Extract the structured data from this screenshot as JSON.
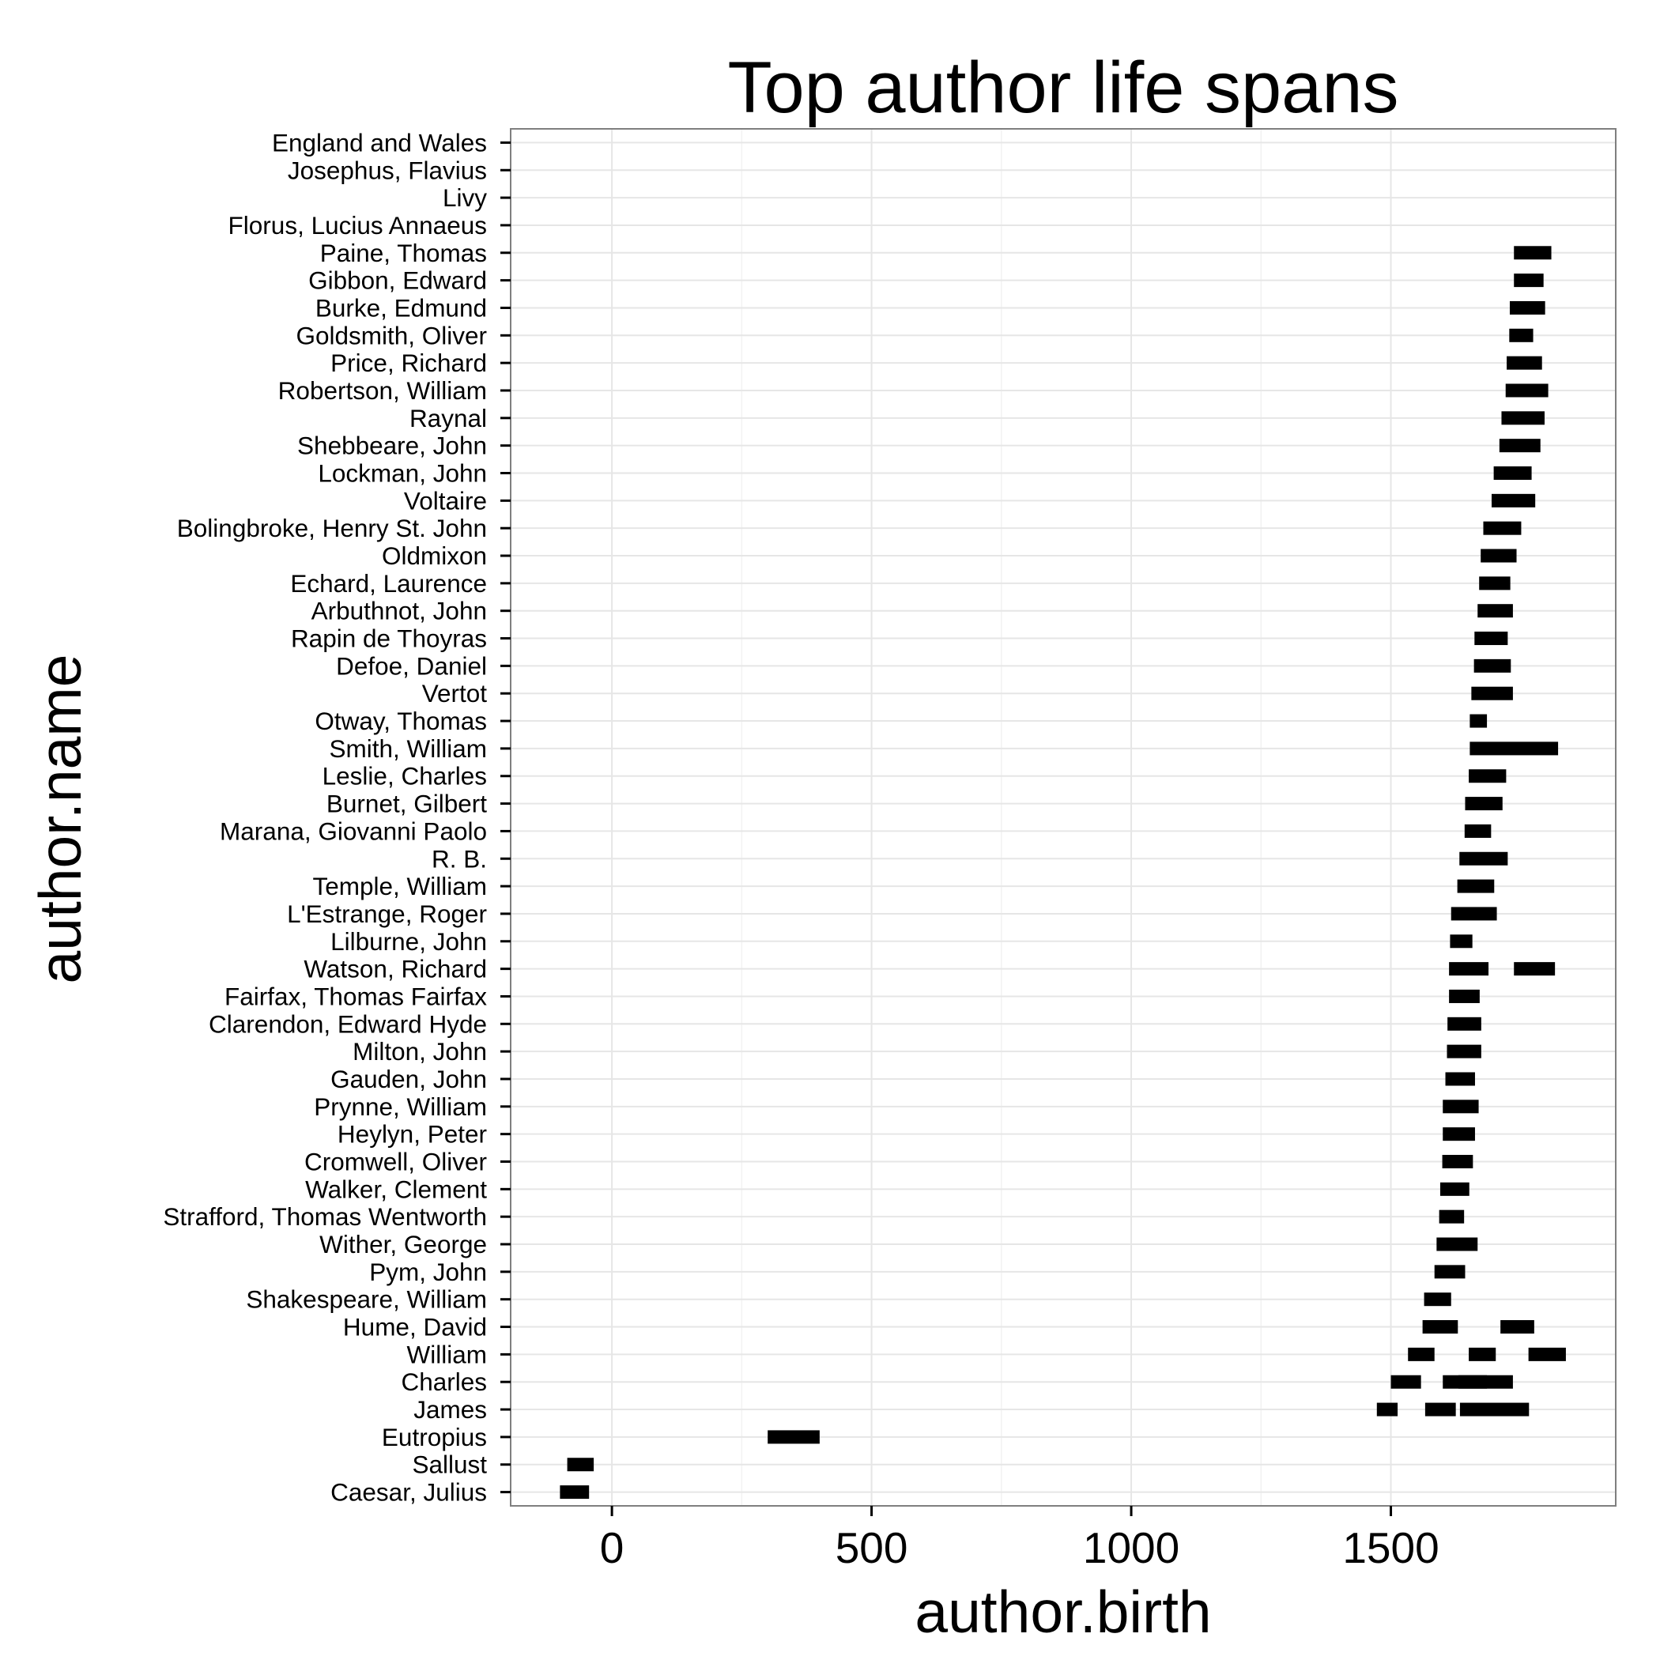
{
  "chart_data": {
    "type": "range",
    "title": "Top author life spans",
    "xlabel": "author.birth",
    "ylabel": "author.name",
    "xlim": [
      -195,
      1933
    ],
    "x_ticks": [
      0,
      500,
      1000,
      1500
    ],
    "x_tick_labels": [
      "0",
      "500",
      "1000",
      "1500"
    ],
    "grid": true,
    "bar_color": "#000000",
    "categories": [
      "England and Wales",
      "Josephus, Flavius",
      "Livy",
      "Florus, Lucius Annaeus",
      "Paine, Thomas",
      "Gibbon, Edward",
      "Burke, Edmund",
      "Goldsmith, Oliver",
      "Price, Richard",
      "Robertson, William",
      "Raynal",
      "Shebbeare, John",
      "Lockman, John",
      "Voltaire",
      "Bolingbroke, Henry St. John",
      "Oldmixon",
      "Echard, Laurence",
      "Arbuthnot, John",
      "Rapin de Thoyras",
      "Defoe, Daniel",
      "Vertot",
      "Otway, Thomas",
      "Smith, William",
      "Leslie, Charles",
      "Burnet, Gilbert",
      "Marana, Giovanni Paolo",
      "R. B.",
      "Temple, William",
      "L'Estrange, Roger",
      "Lilburne, John",
      "Watson, Richard",
      "Fairfax, Thomas Fairfax",
      "Clarendon, Edward Hyde",
      "Milton, John",
      "Gauden, John",
      "Prynne, William",
      "Heylyn, Peter",
      "Cromwell, Oliver",
      "Walker, Clement",
      "Strafford, Thomas Wentworth",
      "Wither, George",
      "Pym, John",
      "Shakespeare, William",
      "Hume, David",
      "William",
      "Charles",
      "James",
      "Eutropius",
      "Sallust",
      "Caesar, Julius"
    ],
    "spans": [
      {
        "author": "Paine, Thomas",
        "start": 1737,
        "end": 1809
      },
      {
        "author": "Gibbon, Edward",
        "start": 1737,
        "end": 1794
      },
      {
        "author": "Burke, Edmund",
        "start": 1729,
        "end": 1797
      },
      {
        "author": "Goldsmith, Oliver",
        "start": 1728,
        "end": 1774
      },
      {
        "author": "Price, Richard",
        "start": 1723,
        "end": 1791
      },
      {
        "author": "Robertson, William",
        "start": 1721,
        "end": 1803
      },
      {
        "author": "Raynal",
        "start": 1713,
        "end": 1796
      },
      {
        "author": "Shebbeare, John",
        "start": 1709,
        "end": 1788
      },
      {
        "author": "Lockman, John",
        "start": 1698,
        "end": 1771
      },
      {
        "author": "Voltaire",
        "start": 1694,
        "end": 1778
      },
      {
        "author": "Bolingbroke, Henry St. John",
        "start": 1678,
        "end": 1751
      },
      {
        "author": "Oldmixon",
        "start": 1673,
        "end": 1742
      },
      {
        "author": "Echard, Laurence",
        "start": 1670,
        "end": 1730
      },
      {
        "author": "Arbuthnot, John",
        "start": 1667,
        "end": 1735
      },
      {
        "author": "Rapin de Thoyras",
        "start": 1661,
        "end": 1725
      },
      {
        "author": "Defoe, Daniel",
        "start": 1660,
        "end": 1731
      },
      {
        "author": "Vertot",
        "start": 1655,
        "end": 1735
      },
      {
        "author": "Otway, Thomas",
        "start": 1652,
        "end": 1685
      },
      {
        "author": "Smith, William",
        "start": 1652,
        "end": 1822
      },
      {
        "author": "Leslie, Charles",
        "start": 1650,
        "end": 1722
      },
      {
        "author": "Burnet, Gilbert",
        "start": 1643,
        "end": 1715
      },
      {
        "author": "Marana, Giovanni Paolo",
        "start": 1642,
        "end": 1693
      },
      {
        "author": "R. B.",
        "start": 1632,
        "end": 1725
      },
      {
        "author": "Temple, William",
        "start": 1628,
        "end": 1699
      },
      {
        "author": "L'Estrange, Roger",
        "start": 1616,
        "end": 1704
      },
      {
        "author": "Lilburne, John",
        "start": 1614,
        "end": 1657
      },
      {
        "author": "Watson, Richard",
        "start": 1612,
        "end": 1688
      },
      {
        "author": "Watson, Richard",
        "start": 1737,
        "end": 1816
      },
      {
        "author": "Fairfax, Thomas Fairfax",
        "start": 1612,
        "end": 1671
      },
      {
        "author": "Clarendon, Edward Hyde",
        "start": 1609,
        "end": 1674
      },
      {
        "author": "Milton, John",
        "start": 1608,
        "end": 1674
      },
      {
        "author": "Gauden, John",
        "start": 1605,
        "end": 1662
      },
      {
        "author": "Prynne, William",
        "start": 1600,
        "end": 1669
      },
      {
        "author": "Heylyn, Peter",
        "start": 1600,
        "end": 1662
      },
      {
        "author": "Cromwell, Oliver",
        "start": 1599,
        "end": 1658
      },
      {
        "author": "Walker, Clement",
        "start": 1595,
        "end": 1651
      },
      {
        "author": "Strafford, Thomas Wentworth",
        "start": 1593,
        "end": 1641
      },
      {
        "author": "Wither, George",
        "start": 1588,
        "end": 1667
      },
      {
        "author": "Pym, John",
        "start": 1584,
        "end": 1643
      },
      {
        "author": "Shakespeare, William",
        "start": 1564,
        "end": 1616
      },
      {
        "author": "Hume, David",
        "start": 1561,
        "end": 1629
      },
      {
        "author": "Hume, David",
        "start": 1711,
        "end": 1776
      },
      {
        "author": "William",
        "start": 1533,
        "end": 1584
      },
      {
        "author": "William",
        "start": 1650,
        "end": 1702
      },
      {
        "author": "William",
        "start": 1765,
        "end": 1837
      },
      {
        "author": "Charles",
        "start": 1500,
        "end": 1558
      },
      {
        "author": "Charles",
        "start": 1600,
        "end": 1685
      },
      {
        "author": "Charles",
        "start": 1630,
        "end": 1735
      },
      {
        "author": "James",
        "start": 1473,
        "end": 1513
      },
      {
        "author": "James",
        "start": 1566,
        "end": 1625
      },
      {
        "author": "James",
        "start": 1633,
        "end": 1766
      },
      {
        "author": "Eutropius",
        "start": 300,
        "end": 400
      },
      {
        "author": "Sallust",
        "start": -86,
        "end": -35
      },
      {
        "author": "Caesar, Julius",
        "start": -100,
        "end": -44
      }
    ]
  }
}
